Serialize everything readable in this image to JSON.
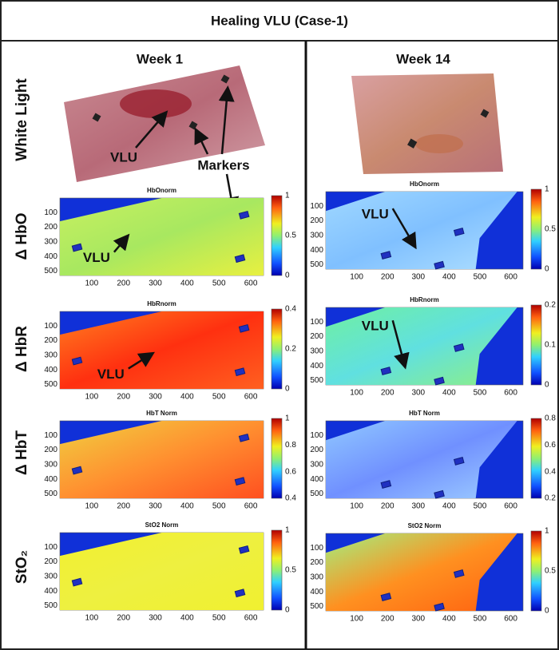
{
  "title": "Healing VLU (Case-1)",
  "rows": [
    "White Light",
    "Δ HbO",
    "Δ HbR",
    "Δ HbT",
    "StO₂"
  ],
  "columns": [
    {
      "heading": "Week 1",
      "photo_labels": [
        "VLU",
        "Markers"
      ],
      "panels": [
        {
          "title": "HbOnorm",
          "xticks": [
            100,
            200,
            300,
            400,
            500,
            600
          ],
          "yticks": [
            100,
            200,
            300,
            400,
            500
          ],
          "colorbar_ticks": [
            1,
            0.5,
            0
          ],
          "annotation": "VLU"
        },
        {
          "title": "HbRnorm",
          "xticks": [
            100,
            200,
            300,
            400,
            500,
            600
          ],
          "yticks": [
            100,
            200,
            300,
            400,
            500
          ],
          "colorbar_ticks": [
            0.4,
            0.2,
            0
          ],
          "annotation": "VLU"
        },
        {
          "title": "HbT Norm",
          "xticks": [
            100,
            200,
            300,
            400,
            500,
            600
          ],
          "yticks": [
            100,
            200,
            300,
            400,
            500
          ],
          "colorbar_ticks": [
            1,
            0.8,
            0.6,
            0.4
          ]
        },
        {
          "title": "StO2 Norm",
          "xticks": [
            100,
            200,
            300,
            400,
            500,
            600
          ],
          "yticks": [
            100,
            200,
            300,
            400,
            500
          ],
          "colorbar_ticks": [
            1,
            0.5,
            0
          ]
        }
      ]
    },
    {
      "heading": "Week 14",
      "panels": [
        {
          "title": "HbOnorm",
          "xticks": [
            100,
            200,
            300,
            400,
            500,
            600
          ],
          "yticks": [
            100,
            200,
            300,
            400,
            500
          ],
          "colorbar_ticks": [
            1,
            0.5,
            0
          ],
          "annotation": "VLU"
        },
        {
          "title": "HbRnorm",
          "xticks": [
            100,
            200,
            300,
            400,
            500,
            600
          ],
          "yticks": [
            100,
            200,
            300,
            400,
            500
          ],
          "colorbar_ticks": [
            0.2,
            0.1,
            0
          ],
          "annotation": "VLU"
        },
        {
          "title": "HbT Norm",
          "xticks": [
            100,
            200,
            300,
            400,
            500,
            600
          ],
          "yticks": [
            100,
            200,
            300,
            400,
            500
          ],
          "colorbar_ticks": [
            0.8,
            0.6,
            0.4,
            0.2
          ]
        },
        {
          "title": "StO2 Norm",
          "xticks": [
            100,
            200,
            300,
            400,
            500,
            600
          ],
          "yticks": [
            100,
            200,
            300,
            400,
            500
          ],
          "colorbar_ticks": [
            1,
            0.5,
            0
          ]
        }
      ]
    }
  ]
}
